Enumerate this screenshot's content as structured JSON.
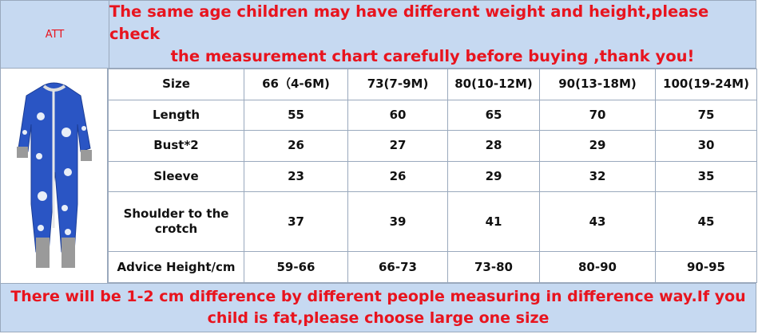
{
  "header": {
    "label": "ATT",
    "notice_lines": [
      "The same age children may have different weight and height,please check",
      "the measurement chart carefully before buying ,thank you!"
    ]
  },
  "table": {
    "rows": [
      [
        "Size",
        "66（4-6M)",
        "73(7-9M)",
        "80(10-12M)",
        "90(13-18M)",
        "100(19-24M)"
      ],
      [
        "Length",
        55,
        60,
        65,
        70,
        75
      ],
      [
        "Bust*2",
        26,
        27,
        28,
        29,
        30
      ],
      [
        "Sleeve",
        23,
        26,
        29,
        32,
        35
      ],
      [
        "Shoulder to the crotch",
        37,
        39,
        41,
        43,
        45
      ],
      [
        "Advice Height/cm",
        "59-66",
        "66-73",
        "73-80",
        "80-90",
        "90-95"
      ]
    ]
  },
  "footer": {
    "notice_lines": [
      "There will be 1-2 cm difference by different people measuring in difference way.If you",
      "child is fat,please choose large one  size"
    ]
  }
}
